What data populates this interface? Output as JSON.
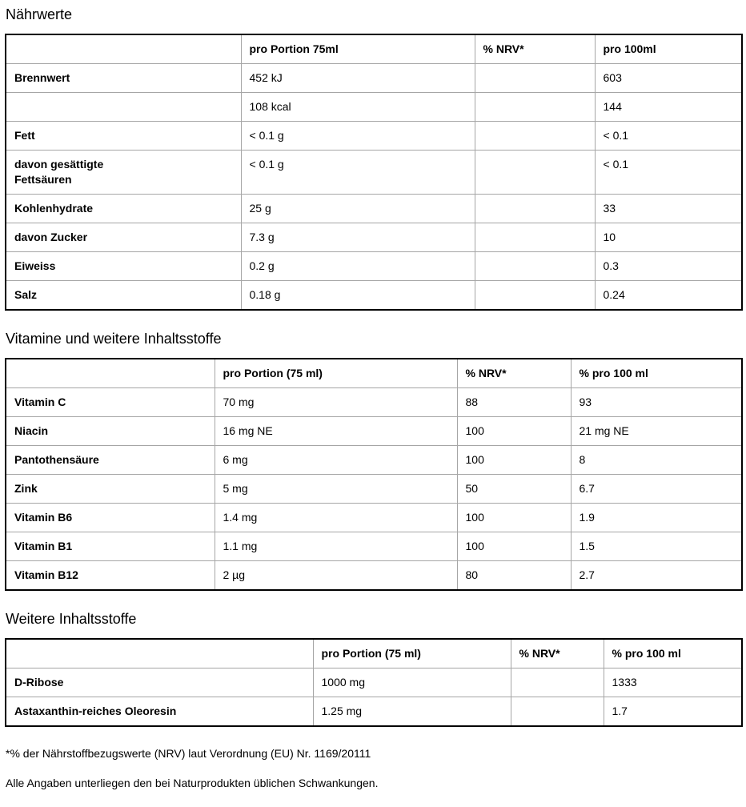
{
  "sections": [
    {
      "title": "Nährwerte",
      "columns": [
        "",
        "pro Portion 75ml",
        "% NRV*",
        "pro 100ml"
      ],
      "rows": [
        [
          "Brennwert",
          "452 kJ",
          "",
          "603"
        ],
        [
          "",
          "108 kcal",
          "",
          "144"
        ],
        [
          "Fett",
          "< 0.1 g",
          "",
          "< 0.1"
        ],
        [
          "davon gesättigte\nFettsäuren",
          "< 0.1 g",
          "",
          "< 0.1"
        ],
        [
          "Kohlenhydrate",
          "25 g",
          "",
          "33"
        ],
        [
          "davon Zucker",
          "7.3 g",
          "",
          "10"
        ],
        [
          "Eiweiss",
          "0.2 g",
          "",
          "0.3"
        ],
        [
          "Salz",
          "0.18 g",
          "",
          "0.24"
        ]
      ]
    },
    {
      "title": "Vitamine und weitere Inhaltsstoffe",
      "columns": [
        "",
        "pro Portion (75 ml)",
        "% NRV*",
        "% pro 100 ml"
      ],
      "rows": [
        [
          "Vitamin C",
          "70 mg",
          "88",
          "93"
        ],
        [
          "Niacin",
          "16 mg NE",
          "100",
          "21 mg NE"
        ],
        [
          "Pantothensäure",
          "6 mg",
          "100",
          "8"
        ],
        [
          "Zink",
          "5 mg",
          "50",
          "6.7"
        ],
        [
          "Vitamin B6",
          "1.4 mg",
          "100",
          "1.9"
        ],
        [
          "Vitamin B1",
          "1.1 mg",
          "100",
          "1.5"
        ],
        [
          "Vitamin B12",
          "2 µg",
          "80",
          "2.7"
        ]
      ]
    },
    {
      "title": "Weitere Inhaltsstoffe",
      "columns": [
        "",
        "pro Portion (75 ml)",
        "% NRV*",
        "% pro 100 ml"
      ],
      "rows": [
        [
          "D-Ribose",
          "1000 mg",
          "",
          "1333"
        ],
        [
          "Astaxanthin-reiches Oleoresin",
          "1.25 mg",
          "",
          "1.7"
        ]
      ]
    }
  ],
  "footnotes": [
    "*% der Nährstoffbezugswerte (NRV) laut Verordnung (EU) Nr. 1169/20111",
    "Alle Angaben unterliegen den bei Naturprodukten üblichen Schwankungen."
  ]
}
